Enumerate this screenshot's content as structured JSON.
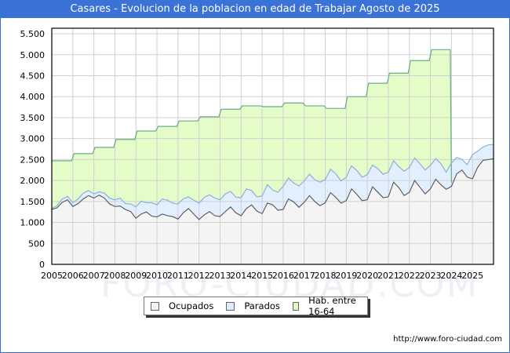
{
  "title": "Casares - Evolucion de la poblacion en edad de Trabajar Agosto de 2025",
  "source": "http://www.foro-ciudad.com",
  "watermark": "FORO-CIUDAD.COM",
  "legend": [
    {
      "label": "Ocupados",
      "color": "#f2f2f2"
    },
    {
      "label": "Parados",
      "color": "#ddeeff"
    },
    {
      "label": "Hab. entre 16-64",
      "color": "#ddfcc4"
    }
  ],
  "colors": {
    "title_bg": "#3a72d6",
    "ocupados_fill": "#f4f4f4",
    "ocupados_line": "#555555",
    "parados_fill": "#e2efff",
    "parados_line": "#8ab0e0",
    "hab_fill": "#e4fcc8",
    "hab_line": "#6aaa88",
    "grid": "#d0d0d0"
  },
  "chart_data": {
    "type": "area",
    "title": "Casares - Evolucion de la poblacion en edad de Trabajar Agosto de 2025",
    "xlabel": "",
    "ylabel": "",
    "ylim": [
      0,
      5600
    ],
    "xlim": [
      2005,
      2026
    ],
    "grid": true,
    "legend_position": "bottom",
    "y_ticks": [
      "0",
      "500",
      "1.000",
      "1.500",
      "2.000",
      "2.500",
      "3.000",
      "3.500",
      "4.000",
      "4.500",
      "5.000",
      "5.500"
    ],
    "y_tick_values": [
      0,
      500,
      1000,
      1500,
      2000,
      2500,
      3000,
      3500,
      4000,
      4500,
      5000,
      5500
    ],
    "x_ticks": [
      "2005",
      "2006",
      "2007",
      "2008",
      "2009",
      "2010",
      "2011",
      "2012",
      "2013",
      "2014",
      "2015",
      "2016",
      "2017",
      "2018",
      "2019",
      "2020",
      "2021",
      "2022",
      "2023",
      "2024",
      "2025"
    ],
    "series": [
      {
        "name": "Hab. entre 16-64",
        "type": "step",
        "years": [
          2005,
          2006,
          2007,
          2008,
          2009,
          2010,
          2011,
          2012,
          2013,
          2014,
          2015,
          2016,
          2017,
          2018,
          2019,
          2020,
          2021,
          2022,
          2023
        ],
        "values": [
          2470,
          2640,
          2790,
          2980,
          3180,
          3290,
          3420,
          3520,
          3700,
          3780,
          3760,
          3850,
          3780,
          3720,
          4000,
          4320,
          4560,
          4860,
          5120
        ]
      },
      {
        "name": "Parados",
        "x": [
          2005.0,
          2005.25,
          2005.5,
          2005.75,
          2006.0,
          2006.25,
          2006.5,
          2006.75,
          2007.0,
          2007.25,
          2007.5,
          2007.75,
          2008.0,
          2008.25,
          2008.5,
          2008.75,
          2009.0,
          2009.25,
          2009.5,
          2009.75,
          2010.0,
          2010.25,
          2010.5,
          2010.75,
          2011.0,
          2011.25,
          2011.5,
          2011.75,
          2012.0,
          2012.25,
          2012.5,
          2012.75,
          2013.0,
          2013.25,
          2013.5,
          2013.75,
          2014.0,
          2014.25,
          2014.5,
          2014.75,
          2015.0,
          2015.25,
          2015.5,
          2015.75,
          2016.0,
          2016.25,
          2016.5,
          2016.75,
          2017.0,
          2017.25,
          2017.5,
          2017.75,
          2018.0,
          2018.25,
          2018.5,
          2018.75,
          2019.0,
          2019.25,
          2019.5,
          2019.75,
          2020.0,
          2020.25,
          2020.5,
          2020.75,
          2021.0,
          2021.25,
          2021.5,
          2021.75,
          2022.0,
          2022.25,
          2022.5,
          2022.75,
          2023.0,
          2023.25,
          2023.5,
          2023.75,
          2024.0,
          2024.25,
          2024.5,
          2024.75,
          2025.0,
          2025.25,
          2025.5,
          2025.75,
          2026.0
        ],
        "values": [
          1330,
          1400,
          1560,
          1620,
          1470,
          1560,
          1700,
          1760,
          1680,
          1730,
          1700,
          1580,
          1540,
          1580,
          1450,
          1440,
          1370,
          1510,
          1470,
          1470,
          1420,
          1560,
          1530,
          1460,
          1440,
          1560,
          1610,
          1530,
          1460,
          1600,
          1660,
          1580,
          1540,
          1680,
          1740,
          1600,
          1590,
          1800,
          1760,
          1610,
          1630,
          1900,
          1770,
          1720,
          1860,
          2060,
          1940,
          1870,
          1990,
          2150,
          2020,
          1960,
          2020,
          2270,
          2160,
          1990,
          2080,
          2350,
          2240,
          2080,
          2140,
          2370,
          2280,
          2150,
          2200,
          2470,
          2330,
          2220,
          2310,
          2540,
          2400,
          2250,
          2360,
          2520,
          2400,
          2200,
          2420,
          2550,
          2500,
          2380,
          2620,
          2700,
          2800,
          2850,
          2860
        ]
      },
      {
        "name": "Ocupados",
        "x": [
          2005.0,
          2005.25,
          2005.5,
          2005.75,
          2006.0,
          2006.25,
          2006.5,
          2006.75,
          2007.0,
          2007.25,
          2007.5,
          2007.75,
          2008.0,
          2008.25,
          2008.5,
          2008.75,
          2009.0,
          2009.25,
          2009.5,
          2009.75,
          2010.0,
          2010.25,
          2010.5,
          2010.75,
          2011.0,
          2011.25,
          2011.5,
          2011.75,
          2012.0,
          2012.25,
          2012.5,
          2012.75,
          2013.0,
          2013.25,
          2013.5,
          2013.75,
          2014.0,
          2014.25,
          2014.5,
          2014.75,
          2015.0,
          2015.25,
          2015.5,
          2015.75,
          2016.0,
          2016.25,
          2016.5,
          2016.75,
          2017.0,
          2017.25,
          2017.5,
          2017.75,
          2018.0,
          2018.25,
          2018.5,
          2018.75,
          2019.0,
          2019.25,
          2019.5,
          2019.75,
          2020.0,
          2020.25,
          2020.5,
          2020.75,
          2021.0,
          2021.25,
          2021.5,
          2021.75,
          2022.0,
          2022.25,
          2022.5,
          2022.75,
          2023.0,
          2023.25,
          2023.5,
          2023.75,
          2024.0,
          2024.25,
          2024.5,
          2024.75,
          2025.0,
          2025.25,
          2025.5,
          2025.75,
          2026.0
        ],
        "values": [
          1310,
          1350,
          1480,
          1540,
          1380,
          1450,
          1560,
          1640,
          1580,
          1650,
          1580,
          1440,
          1380,
          1390,
          1310,
          1260,
          1100,
          1200,
          1250,
          1150,
          1130,
          1200,
          1160,
          1140,
          1080,
          1230,
          1330,
          1200,
          1070,
          1180,
          1260,
          1160,
          1140,
          1260,
          1370,
          1230,
          1160,
          1330,
          1420,
          1270,
          1210,
          1460,
          1420,
          1290,
          1310,
          1560,
          1490,
          1360,
          1480,
          1640,
          1500,
          1400,
          1470,
          1710,
          1600,
          1460,
          1520,
          1800,
          1670,
          1520,
          1540,
          1850,
          1720,
          1590,
          1610,
          1960,
          1830,
          1640,
          1720,
          2000,
          1840,
          1680,
          1800,
          2030,
          1900,
          1790,
          1860,
          2160,
          2250,
          2080,
          2040,
          2320,
          2480,
          2500,
          2520
        ]
      }
    ]
  }
}
